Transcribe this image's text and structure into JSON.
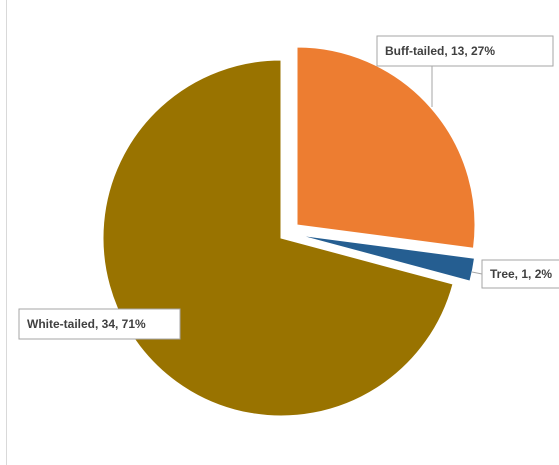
{
  "chart_data": {
    "type": "pie",
    "title": "",
    "exploded": true,
    "slices": [
      {
        "label": "Buff-tailed",
        "value": 13,
        "percent": 27,
        "color": "#ED7D31",
        "data_label": "Buff-tailed, 13, 27%"
      },
      {
        "label": "Tree",
        "value": 1,
        "percent": 2,
        "color": "#255E91",
        "data_label": "Tree, 1, 2%"
      },
      {
        "label": "White-tailed",
        "value": 34,
        "percent": 71,
        "color": "#997300",
        "data_label": "White-tailed, 34, 71%"
      }
    ],
    "data_label_style": "callout",
    "legend": "none"
  }
}
